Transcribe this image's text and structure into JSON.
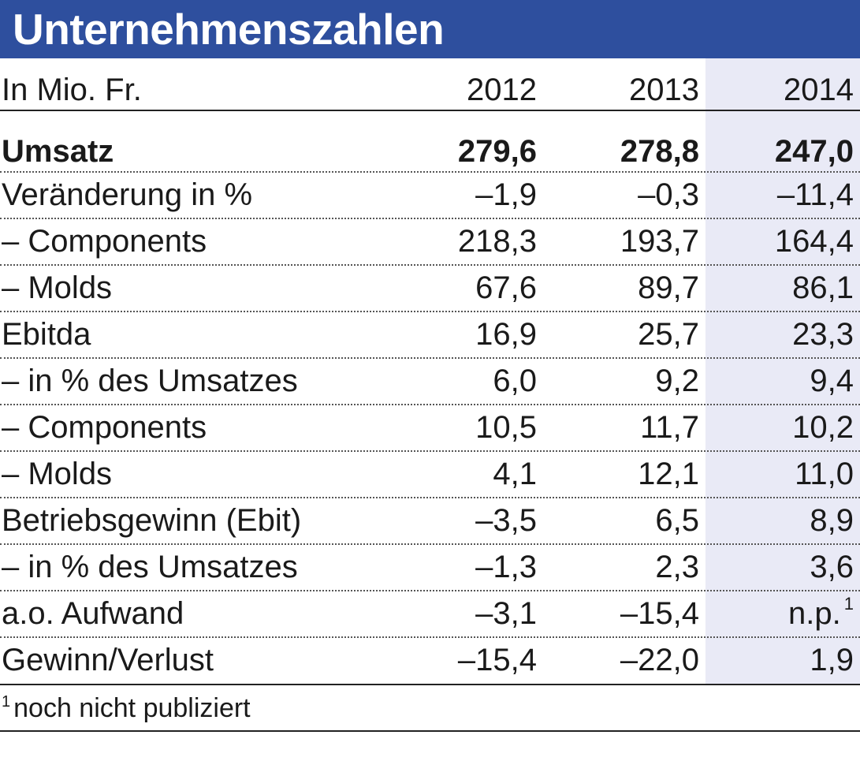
{
  "title": "Unternehmenszahlen",
  "chart_data": {
    "type": "table",
    "title": "Unternehmenszahlen",
    "unit_label": "In Mio. Fr.",
    "columns": [
      "2012",
      "2013",
      "2014"
    ],
    "highlighted_column": "2014",
    "rows": [
      {
        "label": "Umsatz",
        "values": [
          "279,6",
          "278,8",
          "247,0"
        ],
        "bold": true
      },
      {
        "label": "Veränderung in %",
        "values": [
          "–1,9",
          "–0,3",
          "–11,4"
        ]
      },
      {
        "label": "– Components",
        "values": [
          "218,3",
          "193,7",
          "164,4"
        ]
      },
      {
        "label": "– Molds",
        "values": [
          "67,6",
          "89,7",
          "86,1"
        ]
      },
      {
        "label": "Ebitda",
        "values": [
          "16,9",
          "25,7",
          "23,3"
        ]
      },
      {
        "label": "– in % des Umsatzes",
        "values": [
          "6,0",
          "9,2",
          "9,4"
        ]
      },
      {
        "label": "– Components",
        "values": [
          "10,5",
          "11,7",
          "10,2"
        ]
      },
      {
        "label": "– Molds",
        "values": [
          "4,1",
          "12,1",
          "11,0"
        ]
      },
      {
        "label": "Betriebsgewinn (Ebit)",
        "values": [
          "–3,5",
          "6,5",
          "8,9"
        ]
      },
      {
        "label": "– in % des Umsatzes",
        "values": [
          "–1,3",
          "2,3",
          "3,6"
        ]
      },
      {
        "label": "a.o. Aufwand",
        "values": [
          "–3,1",
          "–15,4",
          "n.p."
        ],
        "footnote_on_last": "1"
      },
      {
        "label": "Gewinn/Verlust",
        "values": [
          "–15,4",
          "–22,0",
          "1,9"
        ]
      }
    ],
    "footnote": {
      "mark": "1",
      "text": "noch nicht publiziert"
    }
  },
  "colors": {
    "title_bar": "#2e4f9e",
    "title_text": "#ffffff",
    "highlight_column": "#e9eaf6",
    "text": "#1a1a1a"
  }
}
